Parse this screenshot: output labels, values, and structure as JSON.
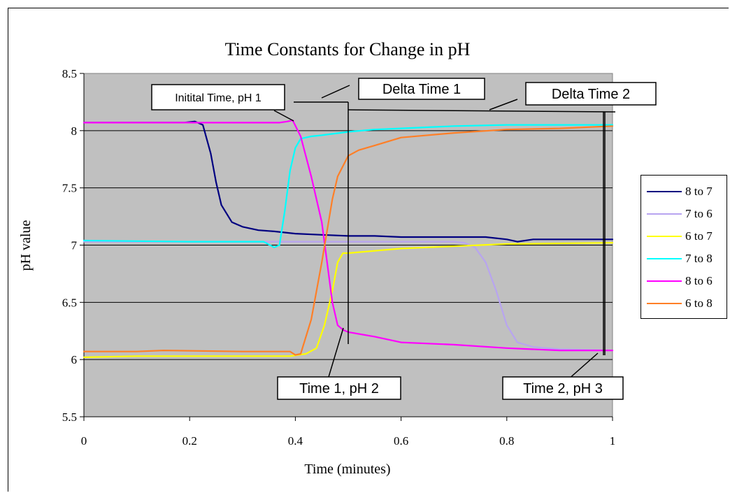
{
  "chart_data": {
    "type": "line",
    "title": "Time Constants for Change in pH",
    "xlabel": "Time (minutes)",
    "ylabel": "pH value",
    "xlim": [
      0,
      1
    ],
    "ylim": [
      5.5,
      8.5
    ],
    "xticks": [
      "0",
      "0.2",
      "0.4",
      "0.6",
      "0.8",
      "1"
    ],
    "yticks": [
      "5.5",
      "6",
      "6.5",
      "7",
      "7.5",
      "8",
      "8.5"
    ],
    "grid": "horizontal",
    "legend_position": "right",
    "plot_background": "#c0c0c0",
    "series": [
      {
        "name": "8 to 7",
        "color": "#000080",
        "x": [
          0,
          0.1,
          0.19,
          0.21,
          0.225,
          0.24,
          0.25,
          0.26,
          0.28,
          0.3,
          0.33,
          0.36,
          0.4,
          0.45,
          0.5,
          0.55,
          0.6,
          0.7,
          0.76,
          0.8,
          0.82,
          0.85,
          1.0
        ],
        "y": [
          8.07,
          8.07,
          8.07,
          8.08,
          8.05,
          7.8,
          7.55,
          7.35,
          7.2,
          7.16,
          7.13,
          7.12,
          7.1,
          7.09,
          7.08,
          7.08,
          7.07,
          7.07,
          7.07,
          7.05,
          7.03,
          7.05,
          7.05
        ]
      },
      {
        "name": "7 to 6",
        "color": "#b8a4f0",
        "x": [
          0,
          0.2,
          0.4,
          0.6,
          0.7,
          0.72,
          0.74,
          0.76,
          0.78,
          0.8,
          0.82,
          0.85,
          0.9,
          1.0
        ],
        "y": [
          7.03,
          7.03,
          7.03,
          7.03,
          7.03,
          7.02,
          6.98,
          6.85,
          6.6,
          6.3,
          6.15,
          6.11,
          6.09,
          6.08
        ]
      },
      {
        "name": "6 to 7",
        "color": "#ffff00",
        "x": [
          0,
          0.1,
          0.2,
          0.3,
          0.39,
          0.42,
          0.44,
          0.455,
          0.47,
          0.48,
          0.49,
          0.5,
          0.55,
          0.6,
          0.7,
          0.8,
          1.0
        ],
        "y": [
          6.02,
          6.03,
          6.03,
          6.03,
          6.03,
          6.05,
          6.1,
          6.3,
          6.6,
          6.85,
          6.93,
          6.93,
          6.95,
          6.97,
          6.99,
          7.01,
          7.02
        ]
      },
      {
        "name": "7 to 8",
        "color": "#00ffff",
        "x": [
          0,
          0.2,
          0.34,
          0.36,
          0.37,
          0.38,
          0.39,
          0.4,
          0.41,
          0.43,
          0.45,
          0.5,
          0.55,
          0.6,
          0.7,
          0.8,
          1.0
        ],
        "y": [
          7.04,
          7.03,
          7.03,
          6.98,
          7.0,
          7.3,
          7.65,
          7.85,
          7.93,
          7.95,
          7.96,
          7.99,
          8.01,
          8.02,
          8.04,
          8.05,
          8.05
        ]
      },
      {
        "name": "8 to 6",
        "color": "#ff00ff",
        "x": [
          0,
          0.2,
          0.37,
          0.385,
          0.395,
          0.41,
          0.43,
          0.45,
          0.46,
          0.47,
          0.48,
          0.49,
          0.5,
          0.55,
          0.6,
          0.7,
          0.8,
          0.9,
          1.0
        ],
        "y": [
          8.07,
          8.07,
          8.07,
          8.08,
          8.09,
          7.95,
          7.6,
          7.2,
          6.85,
          6.5,
          6.3,
          6.26,
          6.24,
          6.2,
          6.15,
          6.13,
          6.1,
          6.08,
          6.08
        ]
      },
      {
        "name": "6 to 8",
        "color": "#ff7f27",
        "x": [
          0,
          0.1,
          0.15,
          0.3,
          0.39,
          0.4,
          0.41,
          0.43,
          0.45,
          0.47,
          0.48,
          0.5,
          0.52,
          0.55,
          0.6,
          0.7,
          0.8,
          0.9,
          1.0
        ],
        "y": [
          6.07,
          6.07,
          6.08,
          6.07,
          6.07,
          6.04,
          6.05,
          6.35,
          6.85,
          7.4,
          7.6,
          7.78,
          7.83,
          7.87,
          7.94,
          7.98,
          8.01,
          8.02,
          8.04
        ]
      }
    ],
    "annotations": [
      {
        "text": "Initital Time, pH 1"
      },
      {
        "text": "Delta Time 1"
      },
      {
        "text": "Delta Time 2"
      },
      {
        "text": "Time 1, pH 2"
      },
      {
        "text": "Time 2, pH 3"
      }
    ]
  }
}
